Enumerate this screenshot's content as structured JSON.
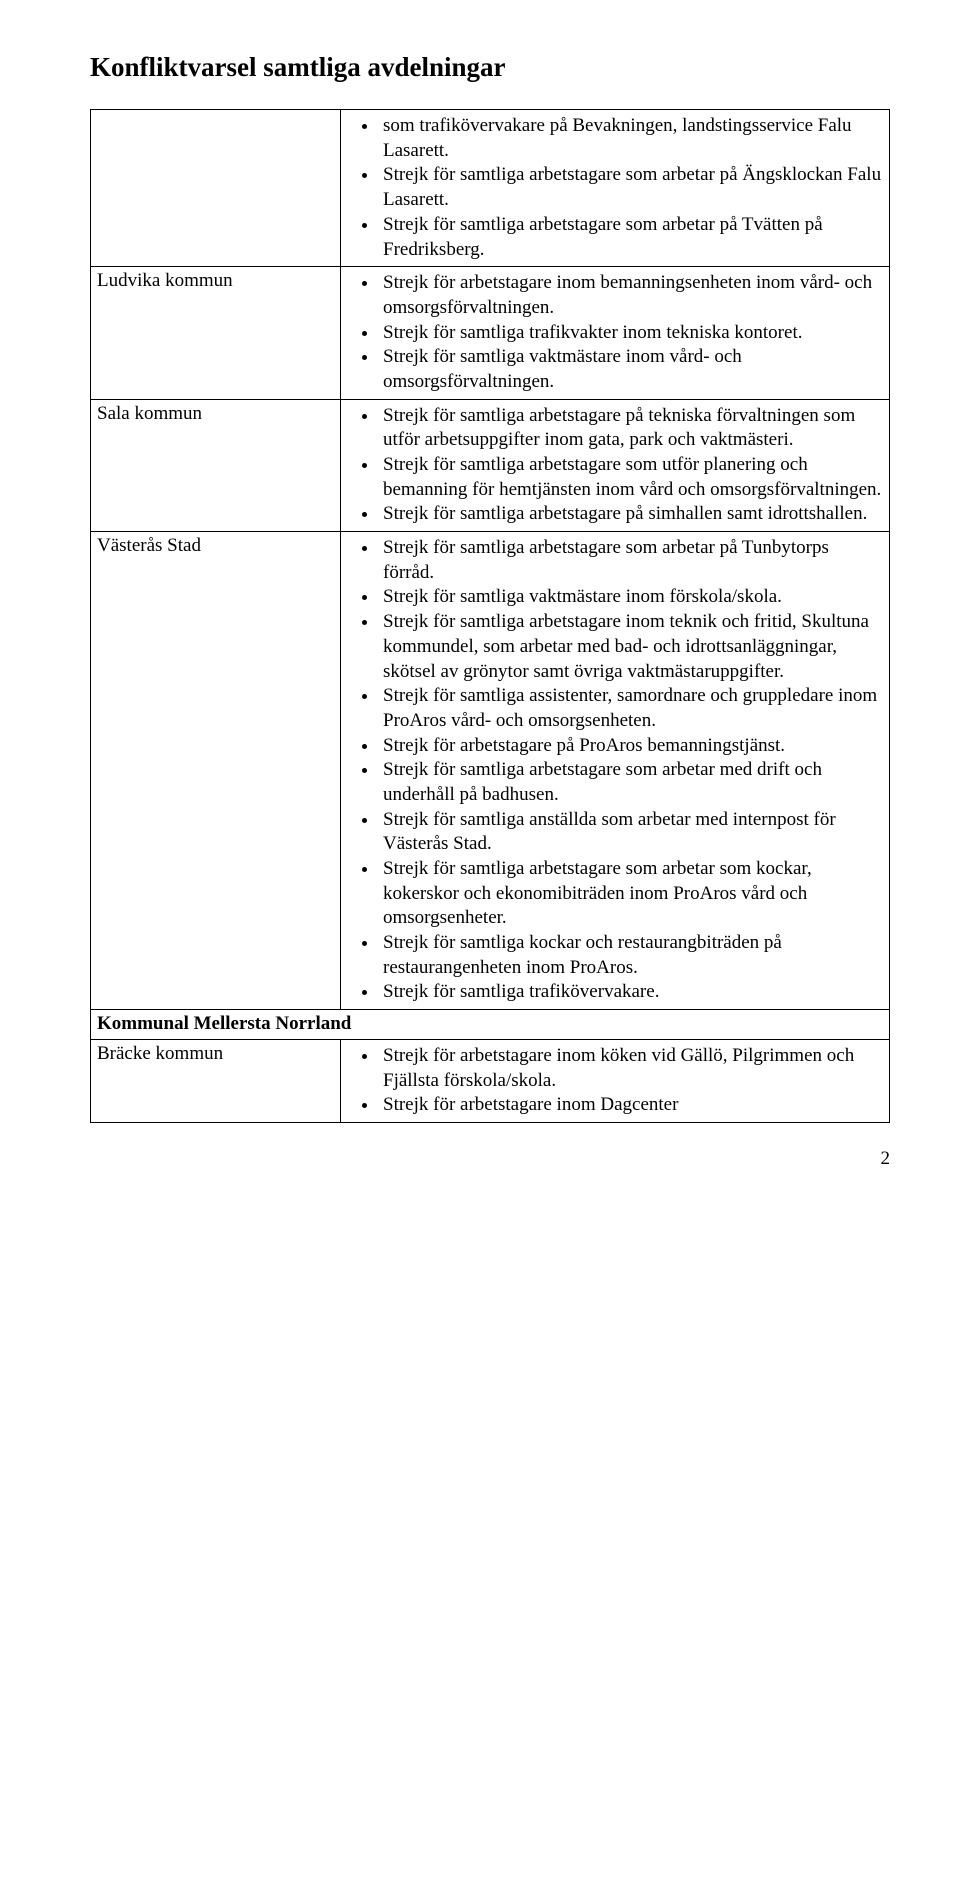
{
  "title": "Konfliktvarsel samtliga avdelningar",
  "page_number": "2",
  "rows": [
    {
      "label": "",
      "items": [
        "som trafikövervakare på Bevakningen, landstingsservice Falu Lasarett.",
        "Strejk för samtliga arbetstagare som arbetar på Ängsklockan Falu Lasarett.",
        "Strejk för samtliga arbetstagare som arbetar på Tvätten på Fredriksberg."
      ],
      "first_item_no_bullet": false
    },
    {
      "label": "Ludvika kommun",
      "items": [
        "Strejk för arbetstagare inom bemanningsenheten inom vård- och omsorgsförvaltningen.",
        "Strejk för samtliga trafikvakter inom tekniska kontoret.",
        "Strejk för samtliga vaktmästare inom vård- och omsorgsförvaltningen."
      ]
    },
    {
      "label": "Sala kommun",
      "items": [
        "Strejk för samtliga arbetstagare på tekniska förvaltningen som utför arbetsuppgifter inom gata, park och vaktmästeri.",
        "Strejk för samtliga arbetstagare som utför planering och bemanning för hemtjänsten inom vård och omsorgsförvaltningen.",
        "Strejk för samtliga arbetstagare på simhallen samt idrottshallen."
      ]
    },
    {
      "label": "Västerås Stad",
      "items": [
        "Strejk för samtliga arbetstagare som arbetar på Tunbytorps förråd.",
        "Strejk för samtliga vaktmästare inom förskola/skola.",
        "Strejk för samtliga arbetstagare inom teknik och fritid, Skultuna kommundel, som arbetar med bad- och idrottsanläggningar, skötsel av grönytor samt övriga vaktmästaruppgifter.",
        "Strejk för samtliga assistenter, samordnare och gruppledare inom ProAros vård- och omsorgsenheten.",
        "Strejk för arbetstagare på ProAros bemanningstjänst.",
        "Strejk för samtliga arbetstagare som arbetar med drift och underhåll på badhusen.",
        "Strejk för samtliga anställda som arbetar med internpost för Västerås Stad.",
        "Strejk för samtliga arbetstagare som arbetar som kockar, kokerskor och ekonomibiträden inom ProAros vård och omsorgsenheter.",
        "Strejk för samtliga kockar och restaurangbiträden på restaurangenheten inom ProAros.",
        "Strejk för samtliga trafikövervakare."
      ]
    }
  ],
  "section_header": "Kommunal Mellersta Norrland",
  "section_rows": [
    {
      "label": "Bräcke kommun",
      "items": [
        "Strejk för arbetstagare inom köken vid Gällö, Pilgrimmen och Fjällsta förskola/skola.",
        "Strejk för arbetstagare inom Dagcenter"
      ]
    }
  ]
}
